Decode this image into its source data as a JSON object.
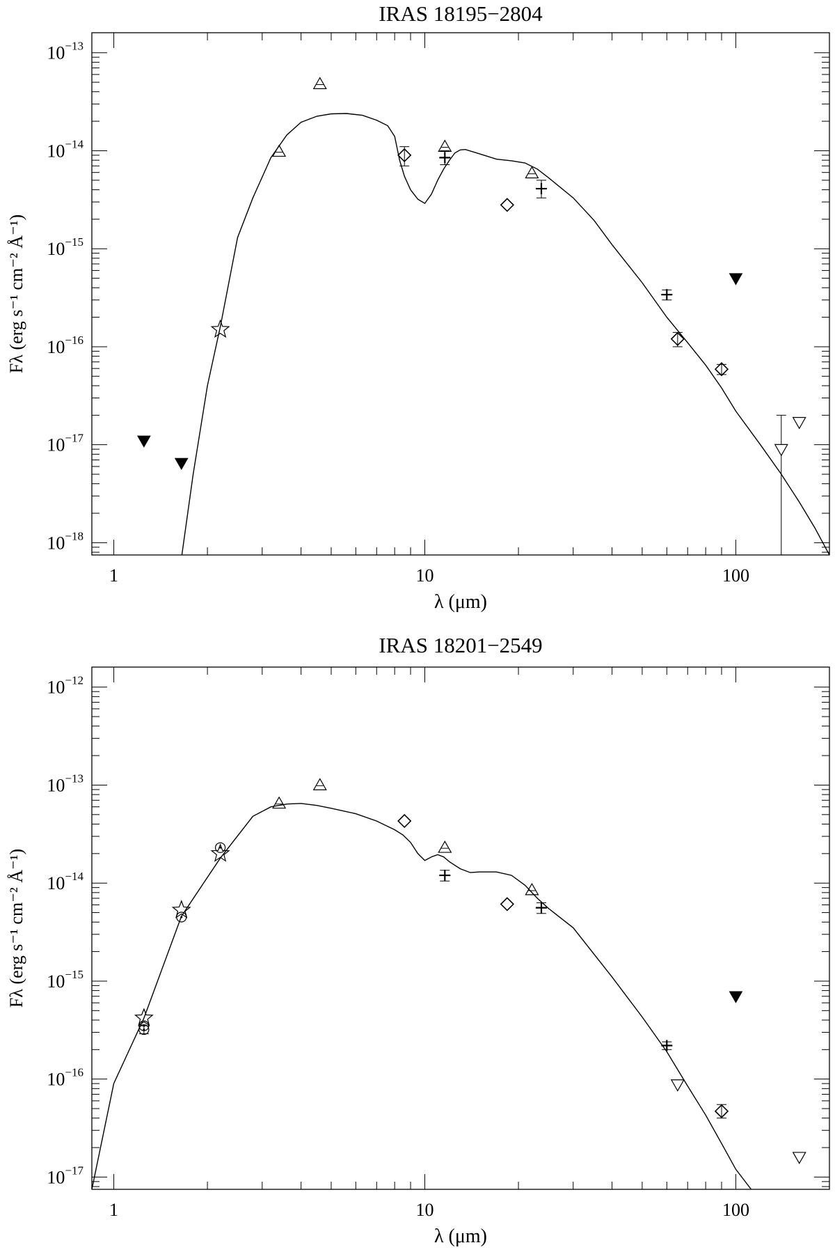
{
  "chart_data": [
    {
      "type": "scatter",
      "title": "IRAS 18195−2804",
      "xlabel": "λ (μm)",
      "ylabel": "Fλ  (erg s⁻¹ cm⁻² Å⁻¹)",
      "xscale": "log",
      "yscale": "log",
      "xlim": [
        0.85,
        200
      ],
      "ylim": [
        7.5e-19,
        1.6e-13
      ],
      "x_ticks": [
        1,
        10,
        100
      ],
      "x_tick_labels": [
        "1",
        "10",
        "100"
      ],
      "y_ticks": [
        1e-18,
        1e-17,
        1e-16,
        1e-15,
        1e-14,
        1e-13
      ],
      "y_tick_exponents": [
        "−18",
        "−17",
        "−16",
        "−15",
        "−14",
        "−13"
      ],
      "model": {
        "x": [
          1.65,
          1.8,
          2.0,
          2.2,
          2.5,
          2.8,
          3.2,
          3.6,
          4.0,
          4.5,
          5.0,
          5.6,
          6.3,
          7.0,
          7.6,
          8.0,
          8.3,
          8.6,
          9.0,
          9.5,
          10.0,
          10.5,
          11.0,
          11.5,
          12.0,
          12.5,
          13.0,
          13.5,
          15.0,
          17.0,
          19.0,
          21.0,
          23.0,
          25.0,
          30.0,
          35.0,
          40.0,
          50.0,
          60.0,
          70.0,
          80.0,
          90.0,
          100.0,
          120.0,
          140.0,
          160.0,
          180.0,
          200.0
        ],
        "y": [
          7e-19,
          5e-18,
          4e-17,
          1.6e-16,
          1.3e-15,
          3.3e-15,
          8.5e-15,
          1.45e-14,
          1.95e-14,
          2.25e-14,
          2.38e-14,
          2.4e-14,
          2.3e-14,
          2.05e-14,
          1.8e-14,
          1.4e-14,
          8e-15,
          5.5e-15,
          4e-15,
          3.2e-15,
          2.9e-15,
          3.6e-15,
          5e-15,
          6.5e-15,
          8e-15,
          9.5e-15,
          1.02e-14,
          1.03e-14,
          9.3e-15,
          8.2e-15,
          7.9e-15,
          7.5e-15,
          6.5e-15,
          5.3e-15,
          3.3e-15,
          1.95e-15,
          1.1e-15,
          4.5e-16,
          2e-16,
          1.1e-16,
          6.5e-17,
          3.8e-17,
          2.2e-17,
          1e-17,
          5e-18,
          2.6e-18,
          1.4e-18,
          7.5e-19
        ]
      },
      "points": [
        {
          "marker": "filled-triangle-down",
          "x": 1.25,
          "y": 1.1e-17
        },
        {
          "marker": "filled-triangle-down",
          "x": 1.65,
          "y": 6.5e-18
        },
        {
          "marker": "star",
          "x": 2.2,
          "y": 1.5e-16
        },
        {
          "marker": "triangle-up",
          "x": 3.4,
          "y": 9.8e-15
        },
        {
          "marker": "triangle-up",
          "x": 4.6,
          "y": 4.8e-14
        },
        {
          "marker": "diamond",
          "x": 8.6,
          "y": 9e-15,
          "ylo": 7e-15,
          "yhi": 1.1e-14
        },
        {
          "marker": "triangle-up",
          "x": 11.6,
          "y": 1.1e-14
        },
        {
          "marker": "plus",
          "x": 11.6,
          "y": 8.5e-15,
          "ylo": 7.2e-15,
          "yhi": 1e-14
        },
        {
          "marker": "diamond",
          "x": 18.4,
          "y": 2.8e-15
        },
        {
          "marker": "triangle-up",
          "x": 22.1,
          "y": 5.9e-15
        },
        {
          "marker": "plus",
          "x": 23.7,
          "y": 4.1e-15,
          "ylo": 3.3e-15,
          "yhi": 5e-15
        },
        {
          "marker": "plus",
          "x": 60,
          "y": 3.4e-16,
          "ylo": 3e-16,
          "yhi": 3.8e-16
        },
        {
          "marker": "diamond",
          "x": 65,
          "y": 1.2e-16,
          "ylo": 1e-16,
          "yhi": 1.4e-16
        },
        {
          "marker": "diamond",
          "x": 90,
          "y": 5.9e-17,
          "ylo": 5.2e-17,
          "yhi": 6.6e-17
        },
        {
          "marker": "filled-triangle-down",
          "x": 100,
          "y": 5e-16
        },
        {
          "marker": "triangle-down",
          "x": 140,
          "y": 9e-18,
          "ylo": 7.5e-19,
          "yhi": 2e-17
        },
        {
          "marker": "triangle-down",
          "x": 160,
          "y": 1.7e-17
        }
      ]
    },
    {
      "type": "scatter",
      "title": "IRAS 18201−2549",
      "xlabel": "λ (μm)",
      "ylabel": "Fλ  (erg s⁻¹ cm⁻² Å⁻¹)",
      "xscale": "log",
      "yscale": "log",
      "xlim": [
        0.85,
        200
      ],
      "ylim": [
        7.5e-18,
        1.6e-12
      ],
      "x_ticks": [
        1,
        10,
        100
      ],
      "x_tick_labels": [
        "1",
        "10",
        "100"
      ],
      "y_ticks": [
        1e-17,
        1e-16,
        1e-15,
        1e-14,
        1e-13,
        1e-12
      ],
      "y_tick_exponents": [
        "−17",
        "−16",
        "−15",
        "−14",
        "−13",
        "−12"
      ],
      "model": {
        "x": [
          0.85,
          0.9,
          1.0,
          1.25,
          1.65,
          2.2,
          2.8,
          3.2,
          3.6,
          4.0,
          4.5,
          5.0,
          6.0,
          7.0,
          8.0,
          8.5,
          9.0,
          9.5,
          10.0,
          10.5,
          11.0,
          11.5,
          12.0,
          13.0,
          14.0,
          15.0,
          17.0,
          19.0,
          21.0,
          23.0,
          25.0,
          30.0,
          40.0,
          50.0,
          60.0,
          70.0,
          80.0,
          90.0,
          100.0,
          112.0
        ],
        "y": [
          7.5e-18,
          1.8e-17,
          9e-17,
          4.2e-16,
          4.6e-15,
          1.8e-14,
          4.8e-14,
          6e-14,
          6.4e-14,
          6.5e-14,
          6.2e-14,
          5.8e-14,
          5.1e-14,
          4.3e-14,
          3.5e-14,
          3.1e-14,
          2.6e-14,
          2e-14,
          1.7e-14,
          1.85e-14,
          1.95e-14,
          1.85e-14,
          1.65e-14,
          1.4e-14,
          1.28e-14,
          1.3e-14,
          1.3e-14,
          1.2e-14,
          9.5e-15,
          7e-15,
          5.5e-15,
          3.5e-15,
          1.1e-15,
          4.3e-16,
          1.9e-16,
          8.5e-17,
          4.3e-17,
          2.2e-17,
          1.2e-17,
          7.5e-18
        ]
      },
      "points": [
        {
          "marker": "star",
          "x": 1.25,
          "y": 4.2e-16
        },
        {
          "marker": "circle",
          "x": 1.25,
          "y": 3.5e-16
        },
        {
          "marker": "circle",
          "x": 1.25,
          "y": 3.2e-16,
          "ylo": 2.9e-16,
          "yhi": 3.5e-16
        },
        {
          "marker": "star",
          "x": 1.65,
          "y": 5.3e-15
        },
        {
          "marker": "circle",
          "x": 1.65,
          "y": 4.5e-15
        },
        {
          "marker": "circle",
          "x": 2.2,
          "y": 2.3e-14
        },
        {
          "marker": "star",
          "x": 2.2,
          "y": 2e-14
        },
        {
          "marker": "triangle-up",
          "x": 3.4,
          "y": 6.5e-14
        },
        {
          "marker": "triangle-up",
          "x": 4.6,
          "y": 1e-13
        },
        {
          "marker": "diamond",
          "x": 8.6,
          "y": 4.3e-14
        },
        {
          "marker": "triangle-up",
          "x": 11.6,
          "y": 2.3e-14
        },
        {
          "marker": "plus",
          "x": 11.6,
          "y": 1.2e-14,
          "ylo": 1.05e-14,
          "yhi": 1.35e-14
        },
        {
          "marker": "diamond",
          "x": 18.4,
          "y": 6.1e-15
        },
        {
          "marker": "triangle-up",
          "x": 22.1,
          "y": 8.5e-15
        },
        {
          "marker": "plus",
          "x": 23.7,
          "y": 5.6e-15,
          "ylo": 4.9e-15,
          "yhi": 6.3e-15
        },
        {
          "marker": "plus",
          "x": 60,
          "y": 2.2e-16,
          "ylo": 2e-16,
          "yhi": 2.4e-16
        },
        {
          "marker": "triangle-down",
          "x": 65,
          "y": 8.8e-17
        },
        {
          "marker": "diamond",
          "x": 90,
          "y": 4.7e-17,
          "ylo": 4e-17,
          "yhi": 5.5e-17
        },
        {
          "marker": "filled-triangle-down",
          "x": 100,
          "y": 7e-16
        },
        {
          "marker": "triangle-down",
          "x": 160,
          "y": 1.6e-17
        }
      ]
    }
  ]
}
